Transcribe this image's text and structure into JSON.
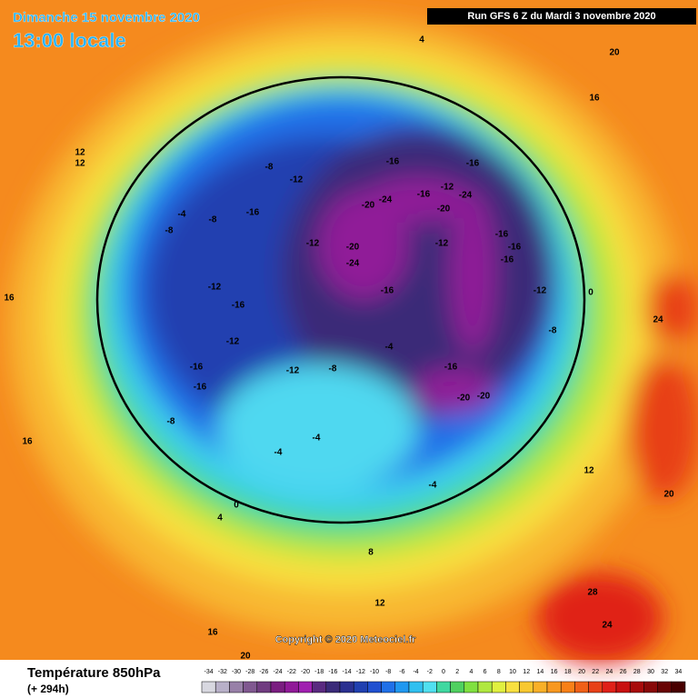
{
  "header": {
    "date": "Dimanche 15 novembre 2020",
    "time": "13:00 locale",
    "run": "Run GFS 6 Z du Mardi 3 novembre 2020"
  },
  "copyright": "Copyright © 2020 Meteociel.fr",
  "footer": {
    "title": "Température 850hPa",
    "lead": "(+ 294h)"
  },
  "legend": {
    "ticks": [
      -34,
      -32,
      -30,
      -28,
      -26,
      -24,
      -22,
      -20,
      -18,
      -16,
      -14,
      -12,
      -10,
      -8,
      -6,
      -4,
      -2,
      0,
      2,
      4,
      6,
      8,
      10,
      12,
      14,
      16,
      18,
      20,
      22,
      24,
      26,
      28,
      30,
      32,
      34
    ],
    "colors": [
      "#d8d8e0",
      "#b8b0c8",
      "#9880a8",
      "#805890",
      "#703c80",
      "#7a1e80",
      "#901a98",
      "#a020b0",
      "#5a2a80",
      "#3a2a78",
      "#2a3090",
      "#2040b0",
      "#2050d0",
      "#2070e8",
      "#2098f0",
      "#30c0f0",
      "#50e0f0",
      "#40d8a0",
      "#50d060",
      "#80e040",
      "#b0e840",
      "#e0f040",
      "#f8e040",
      "#f8c830",
      "#f8b028",
      "#f89820",
      "#f88018",
      "#f06018",
      "#e84018",
      "#e02018",
      "#c81010",
      "#a80c0c",
      "#880808",
      "#680404",
      "#480000"
    ]
  },
  "map": {
    "labels": [
      -16,
      -24,
      -20,
      -16,
      -20,
      -24,
      -12,
      -16,
      -20,
      -24,
      -16,
      -12,
      -16,
      -16,
      -16,
      -12,
      -8,
      -20,
      -20,
      -16,
      -8,
      -12,
      -16,
      -12,
      -16,
      -12,
      -12,
      -16,
      -16,
      -12,
      -8,
      -4,
      -4,
      -4,
      -4,
      -8,
      -8,
      -8,
      4,
      4,
      8,
      12,
      12,
      16,
      16,
      20,
      16,
      20,
      24,
      28,
      24,
      20,
      12,
      16,
      12,
      0,
      0,
      -4
    ]
  }
}
